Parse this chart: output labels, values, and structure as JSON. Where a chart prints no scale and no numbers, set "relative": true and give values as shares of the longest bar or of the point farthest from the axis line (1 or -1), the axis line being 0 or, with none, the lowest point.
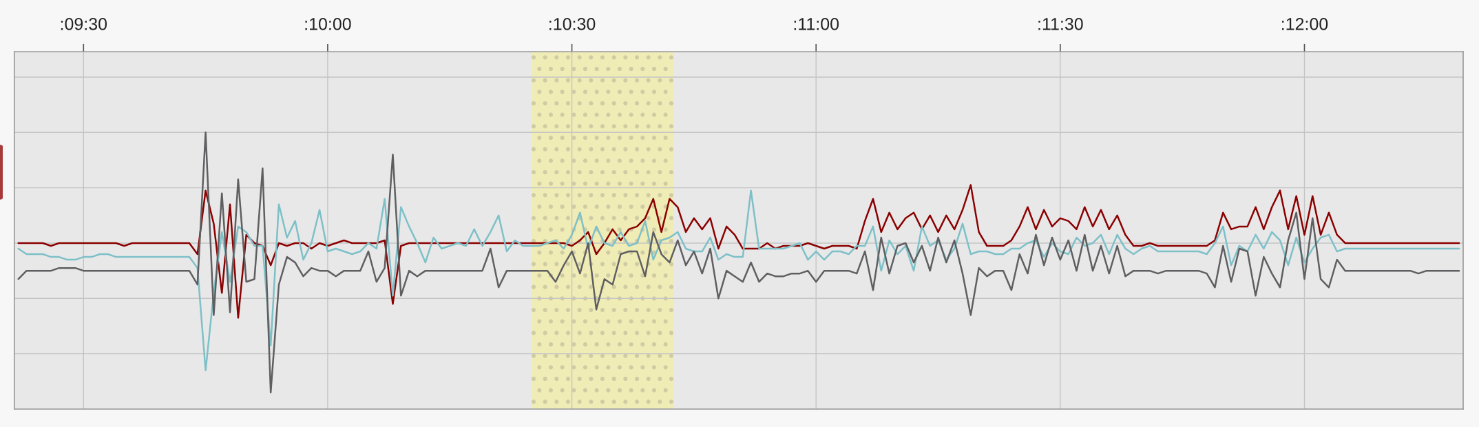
{
  "chart_data": {
    "type": "line",
    "relative": true,
    "grid": true,
    "categories": [
      null,
      null,
      null,
      null,
      null,
      null,
      null,
      null,
      ":09:30",
      null,
      null,
      null,
      null,
      null,
      null,
      null,
      null,
      null,
      null,
      null,
      null,
      null,
      null,
      null,
      null,
      null,
      null,
      null,
      null,
      null,
      null,
      null,
      null,
      null,
      null,
      null,
      null,
      null,
      ":10:00",
      null,
      null,
      null,
      null,
      null,
      null,
      null,
      null,
      null,
      null,
      null,
      null,
      null,
      null,
      null,
      null,
      null,
      null,
      null,
      null,
      null,
      null,
      null,
      null,
      null,
      null,
      null,
      null,
      null,
      ":10:30",
      null,
      null,
      null,
      null,
      null,
      null,
      null,
      null,
      null,
      null,
      null,
      null,
      null,
      null,
      null,
      null,
      null,
      null,
      null,
      null,
      null,
      null,
      null,
      null,
      null,
      null,
      null,
      null,
      null,
      ":11:00",
      null,
      null,
      null,
      null,
      null,
      null,
      null,
      null,
      null,
      null,
      null,
      null,
      null,
      null,
      null,
      null,
      null,
      null,
      null,
      null,
      null,
      null,
      null,
      null,
      null,
      null,
      null,
      null,
      null,
      ":11:30",
      null,
      null,
      null,
      null,
      null,
      null,
      null,
      null,
      null,
      null,
      null,
      null,
      null,
      null,
      null,
      null,
      null,
      null,
      null,
      null,
      null,
      null,
      null,
      null,
      null,
      null,
      null,
      null,
      null,
      ":12:00",
      null,
      null,
      null,
      null,
      null,
      null,
      null,
      null,
      null,
      null,
      null,
      null,
      null,
      null,
      null,
      null,
      null,
      null,
      null
    ],
    "series": [
      {
        "color": "#8b0000",
        "values": [
          0.6,
          0.6,
          0.6,
          0.6,
          0.59,
          0.6,
          0.6,
          0.6,
          0.6,
          0.6,
          0.6,
          0.6,
          0.6,
          0.59,
          0.6,
          0.6,
          0.6,
          0.6,
          0.6,
          0.6,
          0.6,
          0.6,
          0.56,
          0.79,
          0.67,
          0.42,
          0.74,
          0.33,
          0.63,
          0.6,
          0.59,
          0.52,
          0.6,
          0.59,
          0.6,
          0.6,
          0.58,
          0.6,
          0.59,
          0.6,
          0.61,
          0.6,
          0.6,
          0.6,
          0.6,
          0.61,
          0.38,
          0.59,
          0.6,
          0.6,
          0.6,
          0.6,
          0.6,
          0.6,
          0.6,
          0.6,
          0.6,
          0.6,
          0.6,
          0.6,
          0.6,
          0.6,
          0.6,
          0.6,
          0.6,
          0.6,
          0.6,
          0.6,
          0.59,
          0.61,
          0.64,
          0.56,
          0.6,
          0.65,
          0.61,
          0.65,
          0.66,
          0.69,
          0.76,
          0.64,
          0.76,
          0.73,
          0.64,
          0.69,
          0.65,
          0.69,
          0.58,
          0.66,
          0.63,
          0.58,
          0.58,
          0.58,
          0.6,
          0.58,
          0.59,
          0.59,
          0.59,
          0.6,
          0.59,
          0.58,
          0.59,
          0.59,
          0.59,
          0.58,
          0.68,
          0.76,
          0.64,
          0.71,
          0.65,
          0.69,
          0.71,
          0.65,
          0.7,
          0.64,
          0.7,
          0.65,
          0.72,
          0.81,
          0.64,
          0.59,
          0.59,
          0.59,
          0.61,
          0.66,
          0.73,
          0.65,
          0.72,
          0.66,
          0.69,
          0.68,
          0.65,
          0.73,
          0.66,
          0.72,
          0.65,
          0.7,
          0.63,
          0.59,
          0.59,
          0.6,
          0.59,
          0.59,
          0.59,
          0.59,
          0.59,
          0.59,
          0.59,
          0.61,
          0.71,
          0.65,
          0.66,
          0.66,
          0.73,
          0.65,
          0.73,
          0.79,
          0.65,
          0.77,
          0.63,
          0.77,
          0.63,
          0.71,
          0.63,
          0.6,
          0.6,
          0.6,
          0.6,
          0.6,
          0.6,
          0.6,
          0.6,
          0.6,
          0.6,
          0.6,
          0.6,
          0.6,
          0.6,
          0.6
        ]
      },
      {
        "color": "#7ec0c8",
        "values": [
          0.58,
          0.56,
          0.56,
          0.56,
          0.55,
          0.55,
          0.54,
          0.54,
          0.55,
          0.55,
          0.56,
          0.56,
          0.55,
          0.55,
          0.55,
          0.55,
          0.55,
          0.55,
          0.55,
          0.55,
          0.55,
          0.55,
          0.51,
          0.14,
          0.42,
          0.64,
          0.46,
          0.66,
          0.64,
          0.59,
          0.59,
          0.23,
          0.74,
          0.62,
          0.68,
          0.54,
          0.6,
          0.72,
          0.57,
          0.58,
          0.57,
          0.56,
          0.57,
          0.6,
          0.58,
          0.76,
          0.41,
          0.73,
          0.66,
          0.6,
          0.53,
          0.62,
          0.58,
          0.59,
          0.6,
          0.59,
          0.65,
          0.59,
          0.64,
          0.7,
          0.57,
          0.61,
          0.59,
          0.59,
          0.59,
          0.6,
          0.61,
          0.58,
          0.63,
          0.71,
          0.58,
          0.66,
          0.6,
          0.59,
          0.64,
          0.59,
          0.6,
          0.68,
          0.54,
          0.61,
          0.62,
          0.64,
          0.58,
          0.57,
          0.57,
          0.62,
          0.54,
          0.56,
          0.55,
          0.55,
          0.79,
          0.58,
          0.58,
          0.58,
          0.58,
          0.59,
          0.6,
          0.54,
          0.57,
          0.54,
          0.57,
          0.57,
          0.56,
          0.59,
          0.59,
          0.66,
          0.5,
          0.61,
          0.56,
          0.59,
          0.5,
          0.66,
          0.59,
          0.61,
          0.54,
          0.58,
          0.67,
          0.56,
          0.57,
          0.57,
          0.56,
          0.56,
          0.58,
          0.58,
          0.6,
          0.61,
          0.55,
          0.6,
          0.57,
          0.56,
          0.62,
          0.59,
          0.6,
          0.63,
          0.56,
          0.63,
          0.58,
          0.56,
          0.58,
          0.59,
          0.57,
          0.57,
          0.57,
          0.57,
          0.57,
          0.57,
          0.56,
          0.6,
          0.66,
          0.52,
          0.59,
          0.57,
          0.63,
          0.58,
          0.64,
          0.61,
          0.52,
          0.62,
          0.53,
          0.58,
          0.62,
          0.63,
          0.57,
          0.58,
          0.58,
          0.58,
          0.58,
          0.58,
          0.58,
          0.58,
          0.58,
          0.58,
          0.58,
          0.58,
          0.58,
          0.58,
          0.58,
          0.58
        ]
      },
      {
        "color": "#5f5f62",
        "values": [
          0.47,
          0.5,
          0.5,
          0.5,
          0.5,
          0.51,
          0.51,
          0.51,
          0.5,
          0.5,
          0.5,
          0.5,
          0.5,
          0.5,
          0.5,
          0.5,
          0.5,
          0.5,
          0.5,
          0.5,
          0.5,
          0.5,
          0.45,
          1.0,
          0.34,
          0.78,
          0.35,
          0.83,
          0.46,
          0.47,
          0.87,
          0.06,
          0.45,
          0.55,
          0.53,
          0.48,
          0.51,
          0.5,
          0.5,
          0.48,
          0.5,
          0.5,
          0.5,
          0.57,
          0.46,
          0.51,
          0.92,
          0.41,
          0.5,
          0.48,
          0.5,
          0.5,
          0.5,
          0.5,
          0.5,
          0.5,
          0.5,
          0.5,
          0.58,
          0.44,
          0.5,
          0.5,
          0.5,
          0.5,
          0.5,
          0.5,
          0.46,
          0.52,
          0.57,
          0.49,
          0.6,
          0.36,
          0.47,
          0.45,
          0.56,
          0.57,
          0.57,
          0.48,
          0.64,
          0.56,
          0.53,
          0.61,
          0.52,
          0.57,
          0.49,
          0.58,
          0.4,
          0.5,
          0.48,
          0.46,
          0.53,
          0.46,
          0.49,
          0.48,
          0.48,
          0.49,
          0.49,
          0.5,
          0.46,
          0.5,
          0.5,
          0.5,
          0.5,
          0.49,
          0.57,
          0.43,
          0.62,
          0.49,
          0.59,
          0.6,
          0.53,
          0.59,
          0.5,
          0.62,
          0.53,
          0.61,
          0.49,
          0.34,
          0.51,
          0.48,
          0.5,
          0.5,
          0.43,
          0.56,
          0.49,
          0.63,
          0.52,
          0.62,
          0.54,
          0.61,
          0.5,
          0.63,
          0.5,
          0.59,
          0.49,
          0.59,
          0.48,
          0.5,
          0.5,
          0.5,
          0.49,
          0.5,
          0.5,
          0.5,
          0.5,
          0.5,
          0.49,
          0.44,
          0.59,
          0.46,
          0.58,
          0.57,
          0.41,
          0.55,
          0.49,
          0.44,
          0.61,
          0.71,
          0.47,
          0.69,
          0.47,
          0.44,
          0.54,
          0.5,
          0.5,
          0.5,
          0.5,
          0.5,
          0.5,
          0.5,
          0.5,
          0.5,
          0.49,
          0.5,
          0.5,
          0.5,
          0.5,
          0.5
        ]
      }
    ]
  }
}
